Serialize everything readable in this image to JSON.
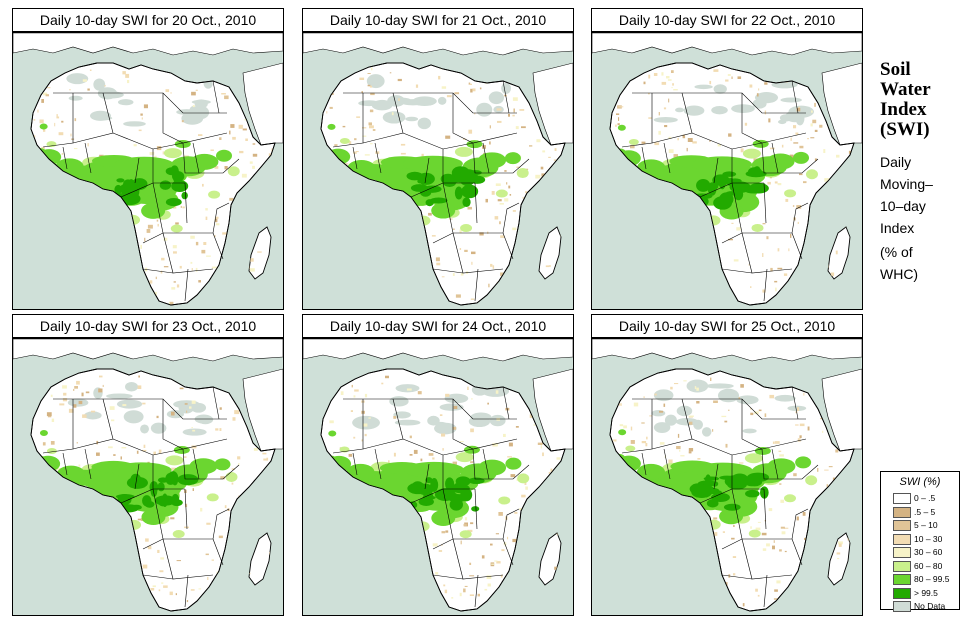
{
  "panels": [
    {
      "title": "Daily 10-day SWI for  20 Oct., 2010"
    },
    {
      "title": "Daily 10-day SWI for  21 Oct., 2010"
    },
    {
      "title": "Daily 10-day SWI for  22 Oct., 2010"
    },
    {
      "title": "Daily 10-day SWI for  23 Oct., 2010"
    },
    {
      "title": "Daily 10-day SWI for  24 Oct., 2010"
    },
    {
      "title": "Daily 10-day SWI for  25 Oct., 2010"
    }
  ],
  "side": {
    "title_lines": [
      "Soil",
      "Water",
      "Index",
      "(SWI)"
    ],
    "subtitle_lines": [
      "Daily",
      "Moving–",
      "10–day",
      "Index"
    ],
    "unit_lines": [
      "(% of",
      " WHC)"
    ]
  },
  "legend": {
    "title": "SWI (%)",
    "items": [
      {
        "label": "0 – .5",
        "color": "#ffffff"
      },
      {
        "label": ".5 – 5",
        "color": "#d4b383"
      },
      {
        "label": "5 – 10",
        "color": "#e0c497"
      },
      {
        "label": "10 – 30",
        "color": "#f2dcb3"
      },
      {
        "label": "30 – 60",
        "color": "#f7f3c8"
      },
      {
        "label": "60 – 80",
        "color": "#c9f08c"
      },
      {
        "label": "80 – 99.5",
        "color": "#6bd630"
      },
      {
        "label": "> 99.5",
        "color": "#22aa00"
      },
      {
        "label": "No Data",
        "color": "#d0dcd6"
      }
    ]
  },
  "colors": {
    "ocean": "#cfe0d8",
    "land_outside": "#ffffff",
    "border": "#000000"
  }
}
